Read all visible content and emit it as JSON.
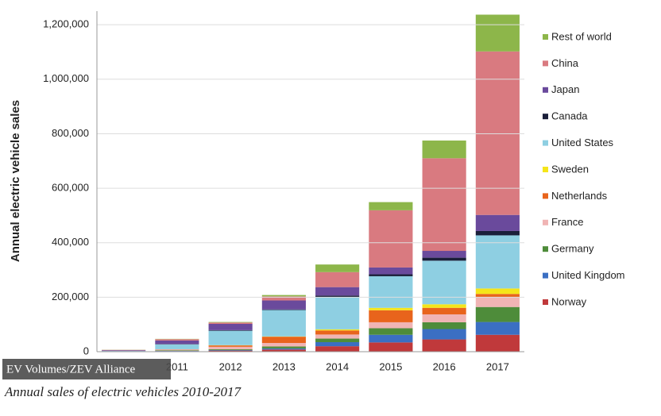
{
  "chart_data": {
    "type": "bar",
    "stacked": true,
    "y_label": "Annual electric vehicle sales",
    "caption": "Annual sales of electric vehicles 2010-2017",
    "source": "EV Volumes/ZEV Alliance",
    "categories": [
      null,
      "2011",
      "2012",
      "2013",
      "2014",
      "2015",
      "2016",
      "2017"
    ],
    "ylim": [
      0,
      1250000
    ],
    "yticks": [
      0,
      {
        "value": 200000,
        "label": "200,000"
      },
      {
        "value": 400000,
        "label": "400,000"
      },
      {
        "value": 600000,
        "label": "600,000"
      },
      {
        "value": 800000,
        "label": "800,000"
      },
      {
        "value": 1000000,
        "label": "1,000,000"
      },
      {
        "value": 1200000,
        "label": "1,200,000"
      }
    ],
    "grid": true,
    "series": [
      {
        "name": "Norway",
        "color": "#c0393b",
        "values": [
          400,
          2000,
          4000,
          8000,
          20000,
          34000,
          45000,
          62000
        ]
      },
      {
        "name": "United Kingdom",
        "color": "#3b6fc3",
        "values": [
          200,
          1000,
          2000,
          4000,
          15000,
          28000,
          38000,
          47000
        ]
      },
      {
        "name": "Germany",
        "color": "#4e8c3a",
        "values": [
          500,
          2000,
          3000,
          7000,
          13000,
          24000,
          25000,
          55000
        ]
      },
      {
        "name": "France",
        "color": "#f0b4b4",
        "values": [
          200,
          3000,
          9000,
          13000,
          15000,
          22000,
          29000,
          37000
        ]
      },
      {
        "name": "Netherlands",
        "color": "#e8641c",
        "values": [
          100,
          1000,
          5000,
          23000,
          15000,
          44000,
          24000,
          11000
        ]
      },
      {
        "name": "Sweden",
        "color": "#f5e51a",
        "values": [
          0,
          0,
          1000,
          1000,
          4000,
          9000,
          13000,
          20000
        ]
      },
      {
        "name": "United States",
        "color": "#8ecfe2",
        "values": [
          1200,
          18000,
          53000,
          97000,
          119000,
          116000,
          160000,
          195000
        ]
      },
      {
        "name": "Canada",
        "color": "#1a1f3a",
        "values": [
          0,
          1000,
          2000,
          2000,
          5000,
          7000,
          11000,
          16000
        ]
      },
      {
        "name": "Japan",
        "color": "#6a4a9c",
        "values": [
          2500,
          13000,
          23000,
          33000,
          31000,
          25000,
          25000,
          59000
        ]
      },
      {
        "name": "China",
        "color": "#d97a80",
        "values": [
          1500,
          5000,
          5000,
          15000,
          55000,
          210000,
          340000,
          600000
        ]
      },
      {
        "name": "Rest of world",
        "color": "#8db64a",
        "values": [
          500,
          1000,
          2000,
          5000,
          28000,
          30000,
          65000,
          135000
        ]
      }
    ]
  }
}
